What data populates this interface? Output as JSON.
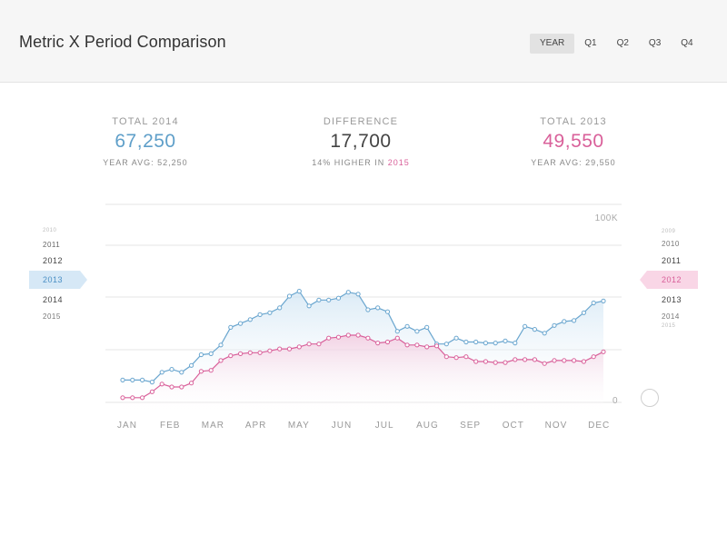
{
  "header": {
    "title": "Metric X Period Comparison",
    "tabs": [
      "YEAR",
      "Q1",
      "Q2",
      "Q3",
      "Q4"
    ],
    "active_tab": "YEAR"
  },
  "summary": {
    "left": {
      "label": "TOTAL 2014",
      "value": "67,250",
      "sub": "YEAR AVG: 52,250"
    },
    "middle": {
      "label": "DIFFERENCE",
      "value": "17,700",
      "sub_prefix": "14% HIGHER IN ",
      "sub_year": "2015"
    },
    "right": {
      "label": "TOTAL 2013",
      "value": "49,550",
      "sub": "YEAR AVG: 29,550"
    }
  },
  "left_years": [
    "2010",
    "2011",
    "2012",
    "2013",
    "2014",
    "2015"
  ],
  "left_selected": "2013",
  "right_years": [
    "2009",
    "2010",
    "2011",
    "2012",
    "2013",
    "2014",
    "2015"
  ],
  "right_selected": "2012",
  "colors": {
    "blue": "#6aa6cf",
    "pink": "#d9609a",
    "grid": "#e6e6e6"
  },
  "chart_data": {
    "type": "area",
    "months": [
      "JAN",
      "FEB",
      "MAR",
      "APR",
      "MAY",
      "JUN",
      "JUL",
      "AUG",
      "SEP",
      "OCT",
      "NOV",
      "DEC"
    ],
    "y_ticks": [
      "100K",
      "0"
    ],
    "ylim": [
      0,
      100000
    ],
    "grid": true,
    "series": [
      {
        "color": "#6aa6cf",
        "values": [
          17000,
          17000,
          17000,
          16000,
          21000,
          22500,
          21000,
          24500,
          30000,
          30500,
          35000,
          44000,
          46000,
          48000,
          50500,
          51500,
          54000,
          60000,
          62500,
          55000,
          58000,
          58000,
          59000,
          62000,
          61000,
          53000,
          54000,
          52000,
          42000,
          44500,
          42000,
          44000,
          35500,
          35500,
          38500,
          36500,
          36500,
          36000,
          36000,
          37000,
          36000,
          44500,
          43000,
          41000,
          45000,
          47000,
          47500,
          51500,
          56500,
          57500
        ]
      },
      {
        "color": "#d9609a",
        "values": [
          8000,
          8000,
          8000,
          11000,
          15000,
          13500,
          13500,
          15500,
          21500,
          22000,
          27000,
          29500,
          30500,
          31000,
          31000,
          32000,
          33000,
          33000,
          34000,
          35500,
          35500,
          38500,
          39000,
          40000,
          40000,
          38500,
          36000,
          36500,
          38500,
          35000,
          35000,
          34000,
          34500,
          29000,
          28500,
          29000,
          26500,
          26500,
          26000,
          26000,
          27500,
          27500,
          27500,
          25500,
          27000,
          27000,
          27000,
          26500,
          29000,
          31500
        ]
      }
    ]
  }
}
